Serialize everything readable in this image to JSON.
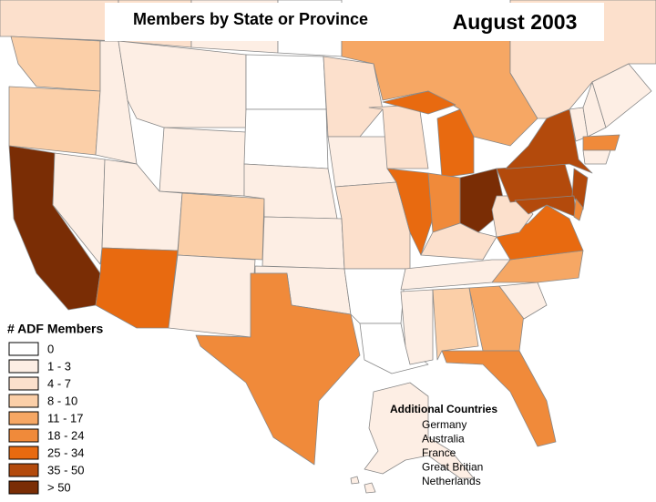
{
  "title": "Members by State or Province",
  "date": "August 2003",
  "legend": {
    "title": "# ADF Members",
    "items": [
      {
        "label": "0",
        "color": "#ffffff"
      },
      {
        "label": "1 - 3",
        "color": "#fdeee4"
      },
      {
        "label": "4 - 7",
        "color": "#fce0cc"
      },
      {
        "label": "8 - 10",
        "color": "#fbcfa8"
      },
      {
        "label": "11 - 17",
        "color": "#f6a764"
      },
      {
        "label": "18 - 24",
        "color": "#f08a3a"
      },
      {
        "label": "25 - 34",
        "color": "#e86a10"
      },
      {
        "label": "35 - 50",
        "color": "#b34a0c"
      },
      {
        "label": "> 50",
        "color": "#7a2d05"
      }
    ]
  },
  "additional": {
    "title": "Additional Countries",
    "items": [
      "Germany",
      "Australia",
      "France",
      "Great Britian",
      "Netherlands"
    ]
  }
}
